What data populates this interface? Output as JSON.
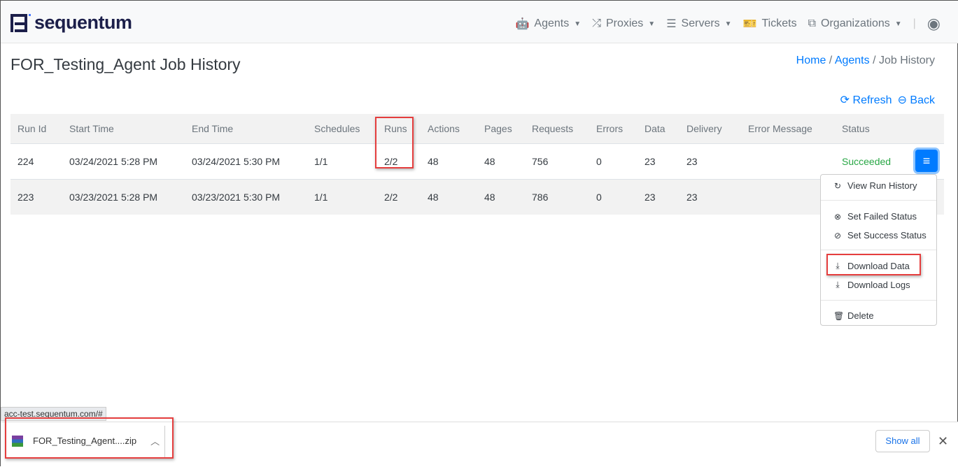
{
  "brand": {
    "name": "sequentum"
  },
  "nav": {
    "items": [
      {
        "label": "Agents",
        "icon": "android-icon"
      },
      {
        "label": "Proxies",
        "icon": "shuffle-icon"
      },
      {
        "label": "Servers",
        "icon": "server-icon"
      },
      {
        "label": "Tickets",
        "icon": "ticket-icon"
      },
      {
        "label": "Organizations",
        "icon": "sitemap-icon"
      }
    ]
  },
  "page": {
    "title": "FOR_Testing_Agent Job History"
  },
  "breadcrumb": [
    "Home",
    "Agents",
    "Job History"
  ],
  "actions": {
    "refresh": "Refresh",
    "back": "Back"
  },
  "table": {
    "headers": [
      "Run Id",
      "Start Time",
      "End Time",
      "Schedules",
      "Runs",
      "Actions",
      "Pages",
      "Requests",
      "Errors",
      "Data",
      "Delivery",
      "Error Message",
      "Status"
    ],
    "rows": [
      [
        "224",
        "03/24/2021 5:28 PM",
        "03/24/2021 5:30 PM",
        "1/1",
        "2/2",
        "48",
        "48",
        "756",
        "0",
        "23",
        "23",
        "",
        "Succeeded"
      ],
      [
        "223",
        "03/23/2021 5:28 PM",
        "03/23/2021 5:30 PM",
        "1/1",
        "2/2",
        "48",
        "48",
        "786",
        "0",
        "23",
        "23",
        "",
        ""
      ]
    ]
  },
  "dropdown": {
    "items": [
      "View Run History",
      "Set Failed Status",
      "Set Success Status",
      "Download Data",
      "Download Logs",
      "Delete"
    ]
  },
  "browser": {
    "status_url": "acc-test.sequentum.com/#",
    "download_file": "FOR_Testing_Agent....zip",
    "show_all": "Show all"
  },
  "colors": {
    "accent": "#007bff",
    "success": "#28a745",
    "highlight": "#e53e3e"
  }
}
